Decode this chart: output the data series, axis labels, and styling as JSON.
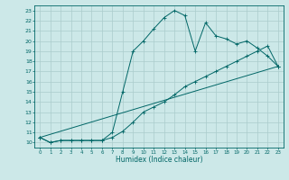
{
  "line1_x": [
    0,
    1,
    2,
    3,
    4,
    5,
    6,
    7,
    8,
    9,
    10,
    11,
    12,
    13,
    14,
    15,
    16,
    17,
    18,
    19,
    20,
    21,
    22,
    23
  ],
  "line1_y": [
    10.5,
    10.0,
    10.2,
    10.2,
    10.2,
    10.2,
    10.2,
    11.0,
    15.0,
    19.0,
    20.0,
    21.2,
    22.3,
    23.0,
    22.5,
    19.0,
    21.8,
    20.5,
    20.2,
    19.7,
    20.0,
    19.3,
    18.5,
    17.5
  ],
  "line2_x": [
    0,
    1,
    2,
    3,
    4,
    5,
    6,
    7,
    8,
    9,
    10,
    11,
    12,
    13,
    14,
    15,
    16,
    17,
    18,
    19,
    20,
    21,
    22,
    23
  ],
  "line2_y": [
    10.5,
    10.0,
    10.2,
    10.2,
    10.2,
    10.2,
    10.2,
    10.5,
    11.1,
    12.0,
    13.0,
    13.5,
    14.0,
    14.7,
    15.5,
    16.0,
    16.5,
    17.0,
    17.5,
    18.0,
    18.5,
    19.0,
    19.5,
    17.5
  ],
  "line3_x": [
    0,
    23
  ],
  "line3_y": [
    10.5,
    17.5
  ],
  "bg_color": "#cce8e8",
  "grid_color": "#aacccc",
  "line_color": "#006666",
  "xlim": [
    -0.5,
    23.5
  ],
  "ylim": [
    9.5,
    23.5
  ],
  "xticks": [
    0,
    1,
    2,
    3,
    4,
    5,
    6,
    7,
    8,
    9,
    10,
    11,
    12,
    13,
    14,
    15,
    16,
    17,
    18,
    19,
    20,
    21,
    22,
    23
  ],
  "yticks": [
    10,
    11,
    12,
    13,
    14,
    15,
    16,
    17,
    18,
    19,
    20,
    21,
    22,
    23
  ],
  "xlabel": "Humidex (Indice chaleur)",
  "marker": "+"
}
